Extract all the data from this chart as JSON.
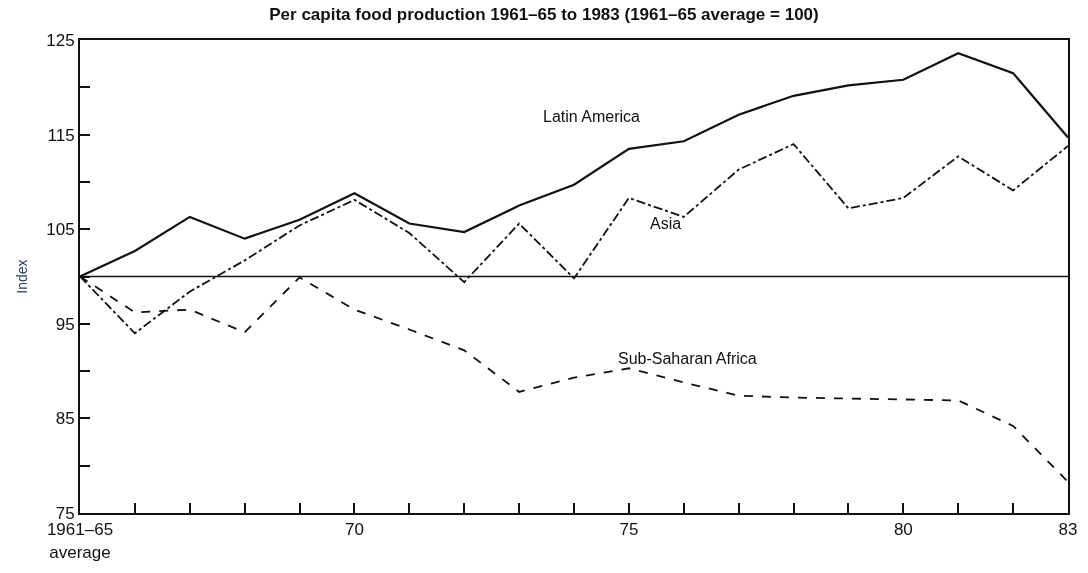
{
  "chart_data": {
    "type": "line",
    "title": "Per capita food production 1961–65 to 1983 (1961–65 average = 100)",
    "ylabel": "Index",
    "x": [
      1965,
      1966,
      1967,
      1968,
      1969,
      1970,
      1971,
      1972,
      1973,
      1974,
      1975,
      1976,
      1977,
      1978,
      1979,
      1980,
      1981,
      1982,
      1983
    ],
    "series": [
      {
        "name": "Latin America",
        "color": "#111111",
        "line_style": "solid",
        "values": [
          100,
          102.7,
          106.3,
          104.0,
          106.0,
          108.8,
          105.6,
          104.7,
          107.5,
          109.7,
          113.5,
          114.3,
          117.1,
          119.1,
          120.2,
          120.8,
          123.6,
          121.5,
          114.7
        ]
      },
      {
        "name": "Asia",
        "color": "#111111",
        "line_style": "dashdot",
        "values": [
          100,
          94.0,
          98.4,
          101.7,
          105.4,
          108.1,
          104.6,
          99.4,
          105.6,
          99.8,
          108.3,
          106.3,
          111.3,
          114.0,
          107.2,
          108.3,
          112.7,
          109.1,
          113.8
        ]
      },
      {
        "name": "Sub-Saharan Africa",
        "color": "#111111",
        "line_style": "dashed",
        "values": [
          100,
          96.2,
          96.5,
          94.1,
          99.9,
          96.5,
          94.4,
          92.2,
          87.8,
          89.3,
          90.3,
          88.8,
          87.4,
          87.2,
          87.1,
          87.0,
          86.9,
          84.2,
          78.3
        ]
      }
    ],
    "xlim": [
      1965,
      1983
    ],
    "xticks": [
      {
        "value": 1965,
        "label": "1961–65\naverage"
      },
      {
        "value": 1966,
        "label": null
      },
      {
        "value": 1967,
        "label": null
      },
      {
        "value": 1968,
        "label": null
      },
      {
        "value": 1969,
        "label": null
      },
      {
        "value": 1970,
        "label": "70"
      },
      {
        "value": 1971,
        "label": null
      },
      {
        "value": 1972,
        "label": null
      },
      {
        "value": 1973,
        "label": null
      },
      {
        "value": 1974,
        "label": null
      },
      {
        "value": 1975,
        "label": "75"
      },
      {
        "value": 1976,
        "label": null
      },
      {
        "value": 1977,
        "label": null
      },
      {
        "value": 1978,
        "label": null
      },
      {
        "value": 1979,
        "label": null
      },
      {
        "value": 1980,
        "label": "80"
      },
      {
        "value": 1981,
        "label": null
      },
      {
        "value": 1982,
        "label": null
      },
      {
        "value": 1983,
        "label": "83"
      }
    ],
    "ylim": [
      75,
      125
    ],
    "yticks": [
      75,
      {
        "value": 80,
        "label": null
      },
      85,
      {
        "value": 90,
        "label": null
      },
      95,
      {
        "value": 100,
        "label": null
      },
      105,
      {
        "value": 110,
        "label": null
      },
      115,
      {
        "value": 120,
        "label": null
      },
      125
    ],
    "ref_lines": [
      {
        "axis": "y",
        "value": 100,
        "color": "#111111",
        "line_style": "solid"
      }
    ],
    "grid": false,
    "legend": false,
    "marker": "none"
  }
}
